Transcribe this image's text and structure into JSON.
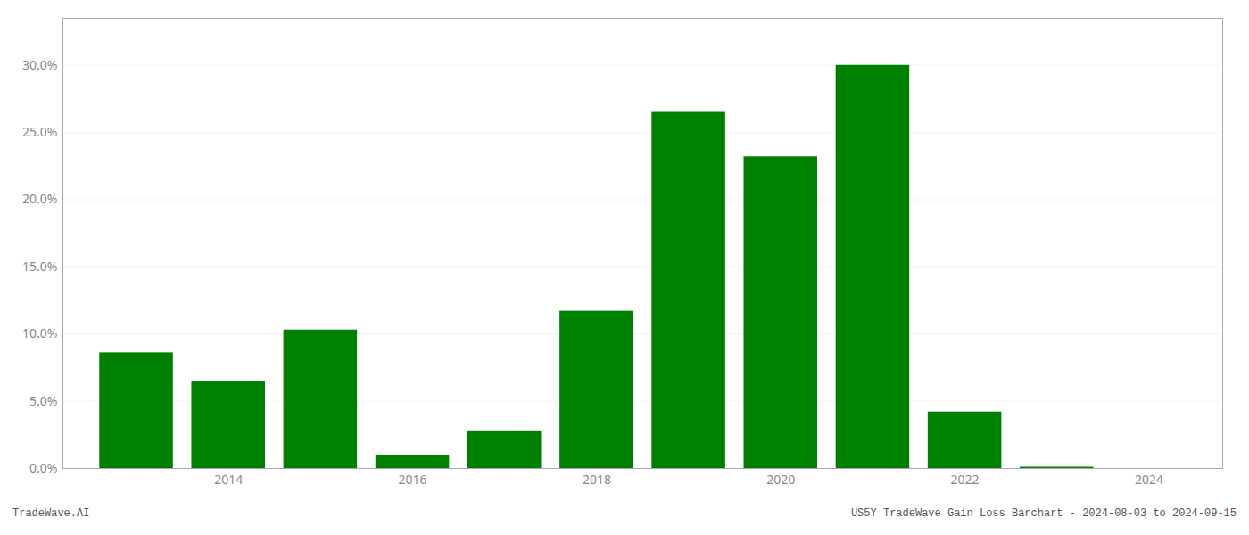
{
  "chart_data": {
    "type": "bar",
    "x": [
      2013,
      2014,
      2015,
      2016,
      2017,
      2018,
      2019,
      2020,
      2021,
      2022,
      2023
    ],
    "values": [
      0.086,
      0.065,
      0.103,
      0.01,
      0.028,
      0.117,
      0.265,
      0.232,
      0.3,
      0.042,
      0.001
    ],
    "color": "#008000",
    "xlim": [
      2012.2,
      2024.8
    ],
    "xticks": [
      2014,
      2016,
      2018,
      2020,
      2022,
      2024
    ],
    "ylim": [
      0,
      0.335
    ],
    "yticks": [
      {
        "value": 0.0,
        "label": "0.0%"
      },
      {
        "value": 0.05,
        "label": "5.0%"
      },
      {
        "value": 0.1,
        "label": "10.0%"
      },
      {
        "value": 0.15,
        "label": "15.0%"
      },
      {
        "value": 0.2,
        "label": "20.0%"
      },
      {
        "value": 0.25,
        "label": "25.0%"
      },
      {
        "value": 0.3,
        "label": "30.0%"
      }
    ],
    "grid": true,
    "annotations": [
      "TradeWave.AI",
      "US5Y TradeWave Gain Loss Barchart - 2024-08-03 to 2024-09-15"
    ]
  }
}
